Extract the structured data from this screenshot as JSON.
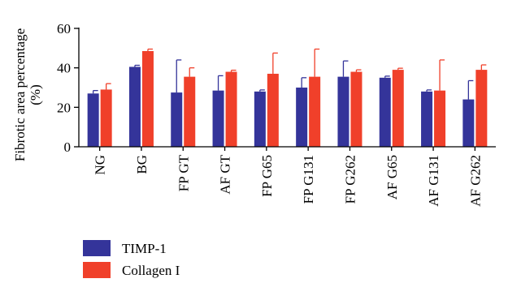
{
  "chart_data": {
    "type": "bar",
    "ylabel_line1": "Fibrotic area percentage",
    "ylabel_line2": "(%)",
    "ylim": [
      0,
      60
    ],
    "yticks": [
      "0",
      "20",
      "40",
      "60"
    ],
    "categories": [
      "NG",
      "BG",
      "FP GT",
      "AF GT",
      "FP G65",
      "FP G131",
      "FP G262",
      "AF G65",
      "AF G131",
      "AF G262"
    ],
    "series": [
      {
        "name": "TIMP-1",
        "color": "#34349a",
        "values": [
          27,
          40.5,
          27.5,
          28.5,
          28,
          30,
          35.5,
          35,
          28,
          24
        ],
        "error": [
          1.5,
          0.8,
          16.5,
          7.5,
          0.8,
          5,
          8,
          0.8,
          0.8,
          9.5
        ]
      },
      {
        "name": "Collagen I",
        "color": "#f0402a",
        "values": [
          29,
          48.5,
          35.5,
          38,
          37,
          35.5,
          38,
          39,
          28.5,
          39
        ],
        "error": [
          3,
          1,
          4.5,
          0.8,
          10.5,
          14,
          1,
          0.8,
          15.5,
          2.5
        ]
      }
    ],
    "legend_position": "bottom-left"
  }
}
